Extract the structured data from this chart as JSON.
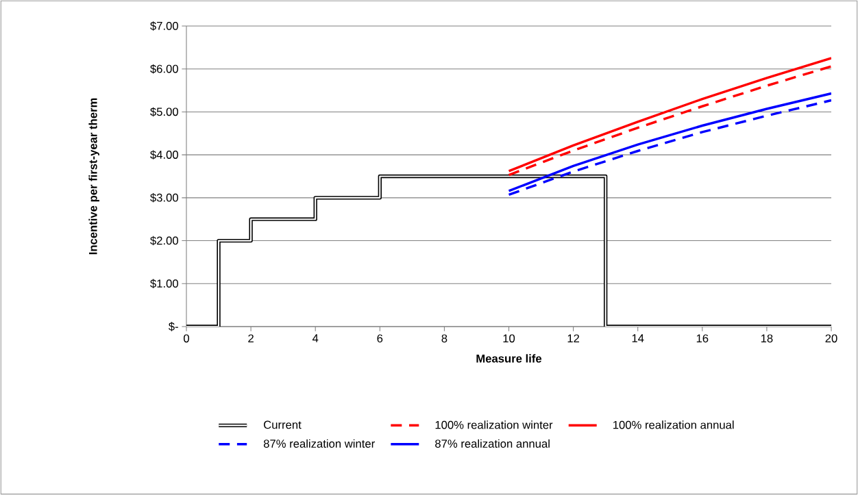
{
  "chart_data": {
    "type": "line",
    "xlabel": "Measure life",
    "ylabel": "Incentive per first-year therm",
    "xlim": [
      0,
      20
    ],
    "xticks": [
      0,
      2,
      4,
      6,
      8,
      10,
      12,
      14,
      16,
      18,
      20
    ],
    "ylim": [
      0,
      7
    ],
    "yticks": [
      {
        "value": 0,
        "label": "$-"
      },
      {
        "value": 1,
        "label": "$1.00"
      },
      {
        "value": 2,
        "label": "$2.00"
      },
      {
        "value": 3,
        "label": "$3.00"
      },
      {
        "value": 4,
        "label": "$4.00"
      },
      {
        "value": 5,
        "label": "$5.00"
      },
      {
        "value": 6,
        "label": "$6.00"
      },
      {
        "value": 7,
        "label": "$7.00"
      }
    ],
    "grid": "y",
    "legend": "bottom",
    "marker": "none",
    "series": [
      {
        "name": "Current",
        "type": "step",
        "color": "#000000",
        "line_style": "solid",
        "x": [
          0,
          1,
          2,
          4,
          6,
          13,
          20
        ],
        "values": [
          0,
          2,
          2.5,
          3,
          3.5,
          0,
          0
        ]
      },
      {
        "name": "100% realization winter",
        "color": "#ff0000",
        "line_style": "dashed",
        "x": [
          10,
          12,
          14,
          16,
          18,
          20
        ],
        "values": [
          3.53,
          4.1,
          4.63,
          5.13,
          5.61,
          6.06
        ]
      },
      {
        "name": "100% realization annual",
        "color": "#ff0000",
        "line_style": "solid",
        "x": [
          10,
          12,
          14,
          16,
          18,
          20
        ],
        "values": [
          3.62,
          4.22,
          4.77,
          5.3,
          5.79,
          6.25
        ]
      },
      {
        "name": "87% realization winter",
        "color": "#0000ff",
        "line_style": "dashed",
        "x": [
          10,
          12,
          14,
          16,
          18,
          20
        ],
        "values": [
          3.07,
          3.61,
          4.09,
          4.53,
          4.91,
          5.27
        ]
      },
      {
        "name": "87% realization annual",
        "color": "#0000ff",
        "line_style": "solid",
        "x": [
          10,
          12,
          14,
          16,
          18,
          20
        ],
        "values": [
          3.16,
          3.74,
          4.24,
          4.68,
          5.07,
          5.43
        ]
      }
    ]
  }
}
